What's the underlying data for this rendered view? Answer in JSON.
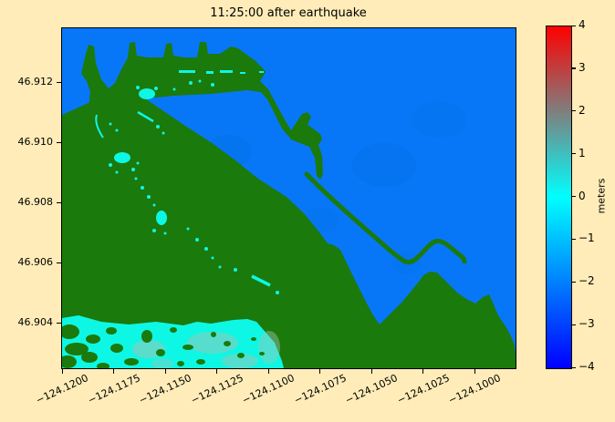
{
  "figure": {
    "title": "11:25:00 after earthquake"
  },
  "chart_data": {
    "type": "heatmap",
    "title": "11:25:00 after earthquake",
    "xlabel": "",
    "ylabel": "",
    "x_ticks": [
      "−124.1200",
      "−124.1175",
      "−124.1150",
      "−124.1125",
      "−124.1100",
      "−124.1075",
      "−124.1050",
      "−124.1025",
      "−124.1000"
    ],
    "x_tick_values": [
      -124.12,
      -124.1175,
      -124.115,
      -124.1125,
      -124.11,
      -124.1075,
      -124.105,
      -124.1025,
      -124.1
    ],
    "y_ticks": [
      "46.912",
      "46.910",
      "46.908",
      "46.906",
      "46.904"
    ],
    "y_tick_values": [
      46.912,
      46.91,
      46.908,
      46.906,
      46.904
    ],
    "x_range": [
      -124.12,
      -124.098
    ],
    "y_range": [
      46.9024,
      46.9138
    ],
    "grid": false,
    "legend": "none (colorbar only)",
    "colorbar": {
      "label": "meters",
      "ticks": [
        "4",
        "3",
        "2",
        "1",
        "0",
        "−1",
        "−2",
        "−3",
        "−4"
      ],
      "tick_values": [
        4,
        3,
        2,
        1,
        0,
        -1,
        -2,
        -3,
        -4
      ],
      "range": [
        -4,
        4
      ],
      "orientation": "vertical",
      "colors_top_to_bottom": [
        "#ff0000",
        "#7f7f7f",
        "#00ffff",
        "#007fff",
        "#0000ff"
      ]
    },
    "value_colors": {
      "deep_water_offshore": "#0777f8",
      "dry_land": "#1b7a0c",
      "shallow_inundated_area": "#0ef7e4"
    }
  },
  "colors": {
    "background": "#ffecb8",
    "water": "#0777f8",
    "land": "#1b7a0c",
    "shallow": "#0ef7e4",
    "tint": "#9fc4b6",
    "watershade": "#046fe0",
    "frame": "#000000"
  }
}
